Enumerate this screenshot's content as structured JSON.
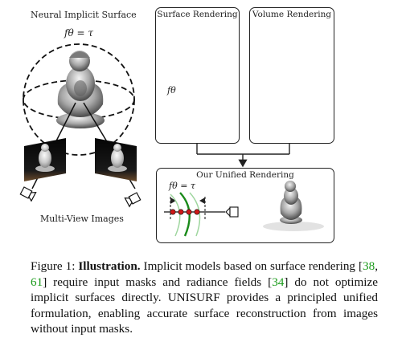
{
  "figure": {
    "left_title": "Neural Implicit Surface",
    "surface_eq": "fθ = τ",
    "multiview_label": "Multi-View Images",
    "surface_panel_title": "Surface Rendering",
    "volume_panel_title": "Volume Rendering",
    "unified_panel_title": "Our Unified Rendering",
    "surface_panel_eq": "fθ",
    "unified_panel_eq": "fθ = τ",
    "colors": {
      "green": "#1a8a1a",
      "light_green": "#9fd69f",
      "red": "#d01818",
      "cite_green": "#1a9a1a"
    }
  },
  "caption": {
    "prefix": "Figure 1: ",
    "bold": "Illustration.",
    "t1": " Implicit models based on surface rendering [",
    "c1": "38",
    "sep": ", ",
    "c2": "61",
    "t2": "] require input masks and radiance fields [",
    "c3": "34",
    "t3": "] do not optimize implicit surfaces directly.  UNISURF provides a principled unified formulation, enabling accurate surface reconstruction from images without input masks."
  }
}
